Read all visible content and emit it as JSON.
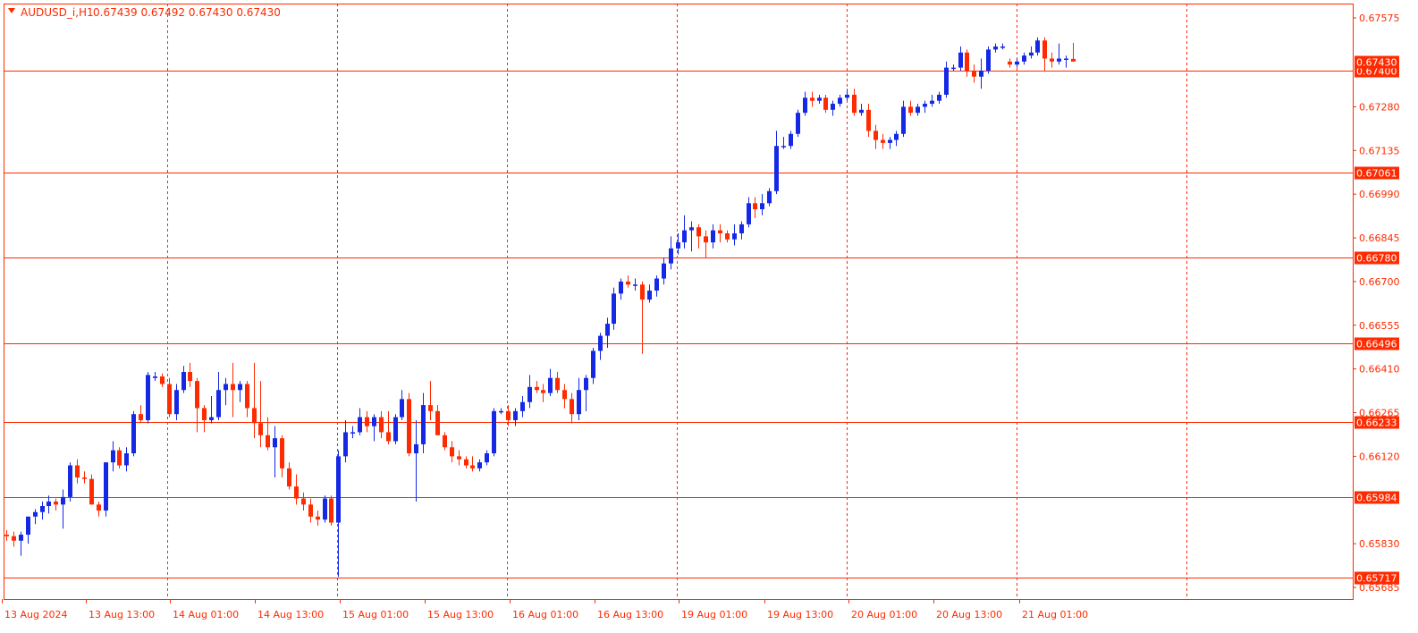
{
  "chart_data": {
    "type": "candlestick",
    "symbol_header": "AUDUSD_i,H1",
    "ohlc_header": "0.67439 0.67492 0.67430 0.67430",
    "colors": {
      "background": "#ffffff",
      "frame": "#ff2a00",
      "bull": "#1428e6",
      "bear": "#ff2a00",
      "doji": "#22bb22",
      "grid": "#ff2a00",
      "level_line": "#ff2a00",
      "axis_text": "#ff2a00"
    },
    "ylim": [
      0.65685,
      0.67575
    ],
    "price_ticks": [
      "0.67575",
      "0.67280",
      "0.67135",
      "0.66990",
      "0.66845",
      "0.66700",
      "0.66555",
      "0.66410",
      "0.66265",
      "0.66120",
      "0.65830",
      "0.65685"
    ],
    "time_labels": [
      "13 Aug 2024",
      "13 Aug 13:00",
      "14 Aug 01:00",
      "14 Aug 13:00",
      "15 Aug 01:00",
      "15 Aug 13:00",
      "16 Aug 01:00",
      "16 Aug 13:00",
      "19 Aug 01:00",
      "19 Aug 13:00",
      "20 Aug 01:00",
      "20 Aug 13:00",
      "21 Aug 01:00"
    ],
    "grid": "vertical-dashed",
    "levels": [
      "0.67400",
      "0.67061",
      "0.66780",
      "0.66496",
      "0.66233",
      "0.65984",
      "0.65717"
    ],
    "current_price": "0.67430",
    "x_start_bar": -1,
    "bars": [
      [
        0.6586,
        0.65875,
        0.6584,
        0.65855
      ],
      [
        0.65855,
        0.6587,
        0.6582,
        0.6584
      ],
      [
        0.6584,
        0.6587,
        0.6579,
        0.6586
      ],
      [
        0.6586,
        0.6592,
        0.6583,
        0.6592
      ],
      [
        0.6592,
        0.65945,
        0.65895,
        0.65935
      ],
      [
        0.65935,
        0.6597,
        0.6591,
        0.65955
      ],
      [
        0.65955,
        0.6599,
        0.6593,
        0.6597
      ],
      [
        0.6597,
        0.6598,
        0.6594,
        0.6596
      ],
      [
        0.6596,
        0.6601,
        0.6588,
        0.65985
      ],
      [
        0.65985,
        0.661,
        0.6597,
        0.6609
      ],
      [
        0.6609,
        0.6611,
        0.6603,
        0.6605
      ],
      [
        0.6605,
        0.6607,
        0.6603,
        0.66045
      ],
      [
        0.66045,
        0.6606,
        0.6596,
        0.6596
      ],
      [
        0.6596,
        0.6597,
        0.6592,
        0.6594
      ],
      [
        0.6594,
        0.661,
        0.6592,
        0.661
      ],
      [
        0.661,
        0.6617,
        0.6607,
        0.6614
      ],
      [
        0.6614,
        0.6615,
        0.6608,
        0.6609
      ],
      [
        0.6609,
        0.6615,
        0.6607,
        0.6613
      ],
      [
        0.6613,
        0.6627,
        0.6612,
        0.6626
      ],
      [
        0.6626,
        0.6629,
        0.6623,
        0.6624
      ],
      [
        0.6624,
        0.664,
        0.6623,
        0.6639
      ],
      [
        0.6638,
        0.664,
        0.6637,
        0.66385
      ],
      [
        0.66385,
        0.66395,
        0.6635,
        0.6636
      ],
      [
        0.6636,
        0.6638,
        0.6625,
        0.6626
      ],
      [
        0.6626,
        0.6636,
        0.6624,
        0.6634
      ],
      [
        0.6634,
        0.6642,
        0.6633,
        0.664
      ],
      [
        0.664,
        0.6643,
        0.6635,
        0.6637
      ],
      [
        0.6637,
        0.6638,
        0.662,
        0.6628
      ],
      [
        0.6628,
        0.6629,
        0.662,
        0.6624
      ],
      [
        0.6624,
        0.6632,
        0.6623,
        0.6625
      ],
      [
        0.6625,
        0.664,
        0.6624,
        0.6634
      ],
      [
        0.6634,
        0.6638,
        0.6629,
        0.6636
      ],
      [
        0.6636,
        0.6643,
        0.6625,
        0.6634
      ],
      [
        0.6634,
        0.6637,
        0.663,
        0.6636
      ],
      [
        0.6636,
        0.6637,
        0.6625,
        0.6628
      ],
      [
        0.6628,
        0.6643,
        0.6618,
        0.6623
      ],
      [
        0.6623,
        0.6637,
        0.6615,
        0.6619
      ],
      [
        0.6619,
        0.6625,
        0.6614,
        0.6615
      ],
      [
        0.6615,
        0.6622,
        0.6605,
        0.6618
      ],
      [
        0.6618,
        0.6619,
        0.6605,
        0.6608
      ],
      [
        0.6608,
        0.661,
        0.6601,
        0.6602
      ],
      [
        0.6602,
        0.6606,
        0.6596,
        0.6598
      ],
      [
        0.6598,
        0.66,
        0.6594,
        0.6596
      ],
      [
        0.6596,
        0.6598,
        0.659,
        0.6592
      ],
      [
        0.6592,
        0.6594,
        0.6589,
        0.6591
      ],
      [
        0.6591,
        0.6599,
        0.659,
        0.6598
      ],
      [
        0.6598,
        0.6599,
        0.6589,
        0.659
      ],
      [
        0.659,
        0.6614,
        0.6572,
        0.6612
      ],
      [
        0.6612,
        0.6624,
        0.661,
        0.662
      ],
      [
        0.662,
        0.6622,
        0.6618,
        0.662
      ],
      [
        0.662,
        0.6628,
        0.6619,
        0.6625
      ],
      [
        0.6625,
        0.6627,
        0.662,
        0.6622
      ],
      [
        0.6622,
        0.6626,
        0.6617,
        0.6625
      ],
      [
        0.6625,
        0.6627,
        0.6618,
        0.662
      ],
      [
        0.662,
        0.6627,
        0.6616,
        0.6617
      ],
      [
        0.6617,
        0.6626,
        0.6616,
        0.6625
      ],
      [
        0.6625,
        0.6634,
        0.6624,
        0.6631
      ],
      [
        0.6631,
        0.6633,
        0.6612,
        0.6613
      ],
      [
        0.6613,
        0.6624,
        0.6597,
        0.6616
      ],
      [
        0.6616,
        0.6633,
        0.6613,
        0.6629
      ],
      [
        0.6629,
        0.6637,
        0.6624,
        0.6627
      ],
      [
        0.6627,
        0.6629,
        0.6619,
        0.6619
      ],
      [
        0.6619,
        0.662,
        0.6614,
        0.6615
      ],
      [
        0.6615,
        0.6617,
        0.661,
        0.6612
      ],
      [
        0.6612,
        0.6614,
        0.6609,
        0.6611
      ],
      [
        0.6611,
        0.6612,
        0.6608,
        0.6609
      ],
      [
        0.6609,
        0.6612,
        0.6607,
        0.6608
      ],
      [
        0.6608,
        0.6611,
        0.6607,
        0.661
      ],
      [
        0.661,
        0.6614,
        0.6609,
        0.6613
      ],
      [
        0.6613,
        0.6628,
        0.6612,
        0.6627
      ],
      [
        0.6627,
        0.6628,
        0.6626,
        0.6627
      ],
      [
        0.6627,
        0.6629,
        0.6622,
        0.6624
      ],
      [
        0.6624,
        0.6628,
        0.6622,
        0.6627
      ],
      [
        0.6627,
        0.6632,
        0.6625,
        0.663
      ],
      [
        0.663,
        0.6639,
        0.6628,
        0.6635
      ],
      [
        0.6635,
        0.6637,
        0.6633,
        0.6634
      ],
      [
        0.6634,
        0.6636,
        0.663,
        0.6633
      ],
      [
        0.6633,
        0.6641,
        0.6632,
        0.6638
      ],
      [
        0.6638,
        0.664,
        0.6633,
        0.6634
      ],
      [
        0.6634,
        0.6636,
        0.6628,
        0.6631
      ],
      [
        0.6631,
        0.6633,
        0.6623,
        0.6626
      ],
      [
        0.6626,
        0.6638,
        0.6624,
        0.6634
      ],
      [
        0.6634,
        0.6639,
        0.6627,
        0.6638
      ],
      [
        0.6638,
        0.6648,
        0.6636,
        0.6647
      ],
      [
        0.6647,
        0.6653,
        0.6644,
        0.6652
      ],
      [
        0.6652,
        0.6658,
        0.6648,
        0.6656
      ],
      [
        0.6656,
        0.6668,
        0.6654,
        0.6666
      ],
      [
        0.6666,
        0.6671,
        0.6664,
        0.667
      ],
      [
        0.667,
        0.6672,
        0.6668,
        0.6669
      ],
      [
        0.6669,
        0.6671,
        0.6667,
        0.6669
      ],
      [
        0.6669,
        0.667,
        0.6646,
        0.6664
      ],
      [
        0.6664,
        0.6669,
        0.6663,
        0.6667
      ],
      [
        0.6667,
        0.6672,
        0.6665,
        0.6671
      ],
      [
        0.6671,
        0.6678,
        0.6669,
        0.6676
      ],
      [
        0.6676,
        0.6685,
        0.6674,
        0.6681
      ],
      [
        0.6681,
        0.6686,
        0.6679,
        0.6683
      ],
      [
        0.6683,
        0.6692,
        0.6681,
        0.6687
      ],
      [
        0.6687,
        0.669,
        0.668,
        0.6688
      ],
      [
        0.6688,
        0.6689,
        0.6681,
        0.6685
      ],
      [
        0.6685,
        0.6687,
        0.6678,
        0.6683
      ],
      [
        0.6683,
        0.6689,
        0.6681,
        0.6687
      ],
      [
        0.6687,
        0.6689,
        0.6683,
        0.6686
      ],
      [
        0.6686,
        0.6687,
        0.6683,
        0.6684
      ],
      [
        0.6684,
        0.6689,
        0.6682,
        0.6686
      ],
      [
        0.6686,
        0.669,
        0.6684,
        0.6689
      ],
      [
        0.6689,
        0.6698,
        0.6688,
        0.6696
      ],
      [
        0.6696,
        0.6698,
        0.6691,
        0.6694
      ],
      [
        0.6694,
        0.6699,
        0.6692,
        0.6696
      ],
      [
        0.6696,
        0.6701,
        0.6695,
        0.67
      ],
      [
        0.67,
        0.672,
        0.6699,
        0.6715
      ],
      [
        0.6715,
        0.6718,
        0.6714,
        0.6715
      ],
      [
        0.6715,
        0.672,
        0.6714,
        0.6719
      ],
      [
        0.6719,
        0.6727,
        0.6718,
        0.6726
      ],
      [
        0.6726,
        0.6733,
        0.6725,
        0.6731
      ],
      [
        0.6731,
        0.6733,
        0.6728,
        0.673
      ],
      [
        0.673,
        0.6732,
        0.6729,
        0.6731
      ],
      [
        0.6731,
        0.6732,
        0.6726,
        0.6727
      ],
      [
        0.6727,
        0.673,
        0.6725,
        0.6729
      ],
      [
        0.6729,
        0.6732,
        0.6728,
        0.6731
      ],
      [
        0.6731,
        0.6734,
        0.673,
        0.6732
      ],
      [
        0.6732,
        0.6734,
        0.6725,
        0.6726
      ],
      [
        0.6726,
        0.6729,
        0.6725,
        0.6727
      ],
      [
        0.6727,
        0.6729,
        0.6718,
        0.672
      ],
      [
        0.672,
        0.6722,
        0.6714,
        0.6717
      ],
      [
        0.6717,
        0.6719,
        0.6714,
        0.6716
      ],
      [
        0.6716,
        0.6718,
        0.6714,
        0.6717
      ],
      [
        0.6717,
        0.672,
        0.6715,
        0.6719
      ],
      [
        0.6719,
        0.673,
        0.6718,
        0.6728
      ],
      [
        0.6728,
        0.673,
        0.6725,
        0.6726
      ],
      [
        0.6726,
        0.6729,
        0.6725,
        0.6728
      ],
      [
        0.6728,
        0.673,
        0.6726,
        0.6729
      ],
      [
        0.6729,
        0.6732,
        0.6728,
        0.673
      ],
      [
        0.673,
        0.6733,
        0.6729,
        0.6732
      ],
      [
        0.6732,
        0.6743,
        0.6731,
        0.6741
      ],
      [
        0.6741,
        0.6742,
        0.674,
        0.6741
      ],
      [
        0.6741,
        0.6748,
        0.674,
        0.6746
      ],
      [
        0.6746,
        0.6747,
        0.6738,
        0.674
      ],
      [
        0.674,
        0.6742,
        0.6736,
        0.6738
      ],
      [
        0.6738,
        0.6744,
        0.6734,
        0.674
      ],
      [
        0.674,
        0.6748,
        0.6739,
        0.6747
      ],
      [
        0.6747,
        0.6749,
        0.6746,
        0.6748
      ],
      [
        0.6748,
        0.6749,
        0.6747,
        0.6748
      ],
      [
        0.6743,
        0.6744,
        0.6741,
        0.6742
      ],
      [
        0.6742,
        0.6744,
        0.6741,
        0.6743
      ],
      [
        0.6743,
        0.6746,
        0.6742,
        0.6745
      ],
      [
        0.6745,
        0.6748,
        0.6744,
        0.6746
      ],
      [
        0.6746,
        0.6751,
        0.6745,
        0.675
      ],
      [
        0.675,
        0.6751,
        0.674,
        0.6744
      ],
      [
        0.6744,
        0.6746,
        0.6741,
        0.6743
      ],
      [
        0.6743,
        0.6749,
        0.6742,
        0.6744
      ],
      [
        0.6744,
        0.6745,
        0.6741,
        0.6744
      ],
      [
        0.67439,
        0.67492,
        0.6743,
        0.6743
      ]
    ]
  }
}
